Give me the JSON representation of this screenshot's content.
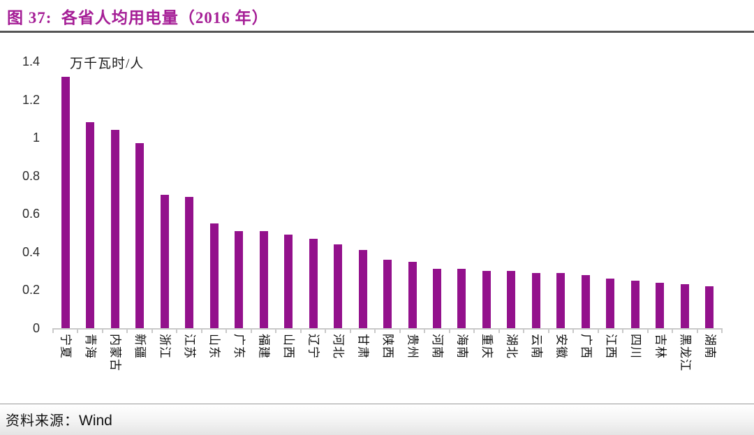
{
  "header": {
    "title": "图 37:  各省人均用电量（2016 年）"
  },
  "footer": {
    "prefix": "资料来源：",
    "source": "Wind"
  },
  "colors": {
    "bar": "#93118C",
    "title": "#A51E96",
    "axis_line": "#C9C9C9",
    "title_rule": "#555555"
  },
  "chart_data": {
    "type": "bar",
    "title": "各省人均用电量（2016 年）",
    "xlabel": "",
    "ylabel": "万千瓦时/人",
    "categories": [
      "宁夏",
      "青海",
      "内蒙古",
      "新疆",
      "浙江",
      "江苏",
      "山东",
      "广东",
      "福建",
      "山西",
      "辽宁",
      "河北",
      "甘肃",
      "陕西",
      "贵州",
      "河南",
      "海南",
      "重庆",
      "湖北",
      "云南",
      "安徽",
      "广西",
      "江西",
      "四川",
      "吉林",
      "黑龙江",
      "湖南"
    ],
    "values": [
      1.32,
      1.08,
      1.04,
      0.97,
      0.7,
      0.69,
      0.55,
      0.51,
      0.51,
      0.49,
      0.47,
      0.44,
      0.41,
      0.36,
      0.35,
      0.31,
      0.31,
      0.3,
      0.3,
      0.29,
      0.29,
      0.28,
      0.26,
      0.25,
      0.24,
      0.23,
      0.22
    ],
    "ylim": [
      0,
      1.4
    ],
    "yticks": [
      "1.4",
      "1.2",
      "1",
      "0.8",
      "0.6",
      "0.4",
      "0.2",
      "0"
    ],
    "bar_color": "#93118C",
    "grid": false,
    "legend": "none",
    "x_label_rotation_deg": 90
  }
}
